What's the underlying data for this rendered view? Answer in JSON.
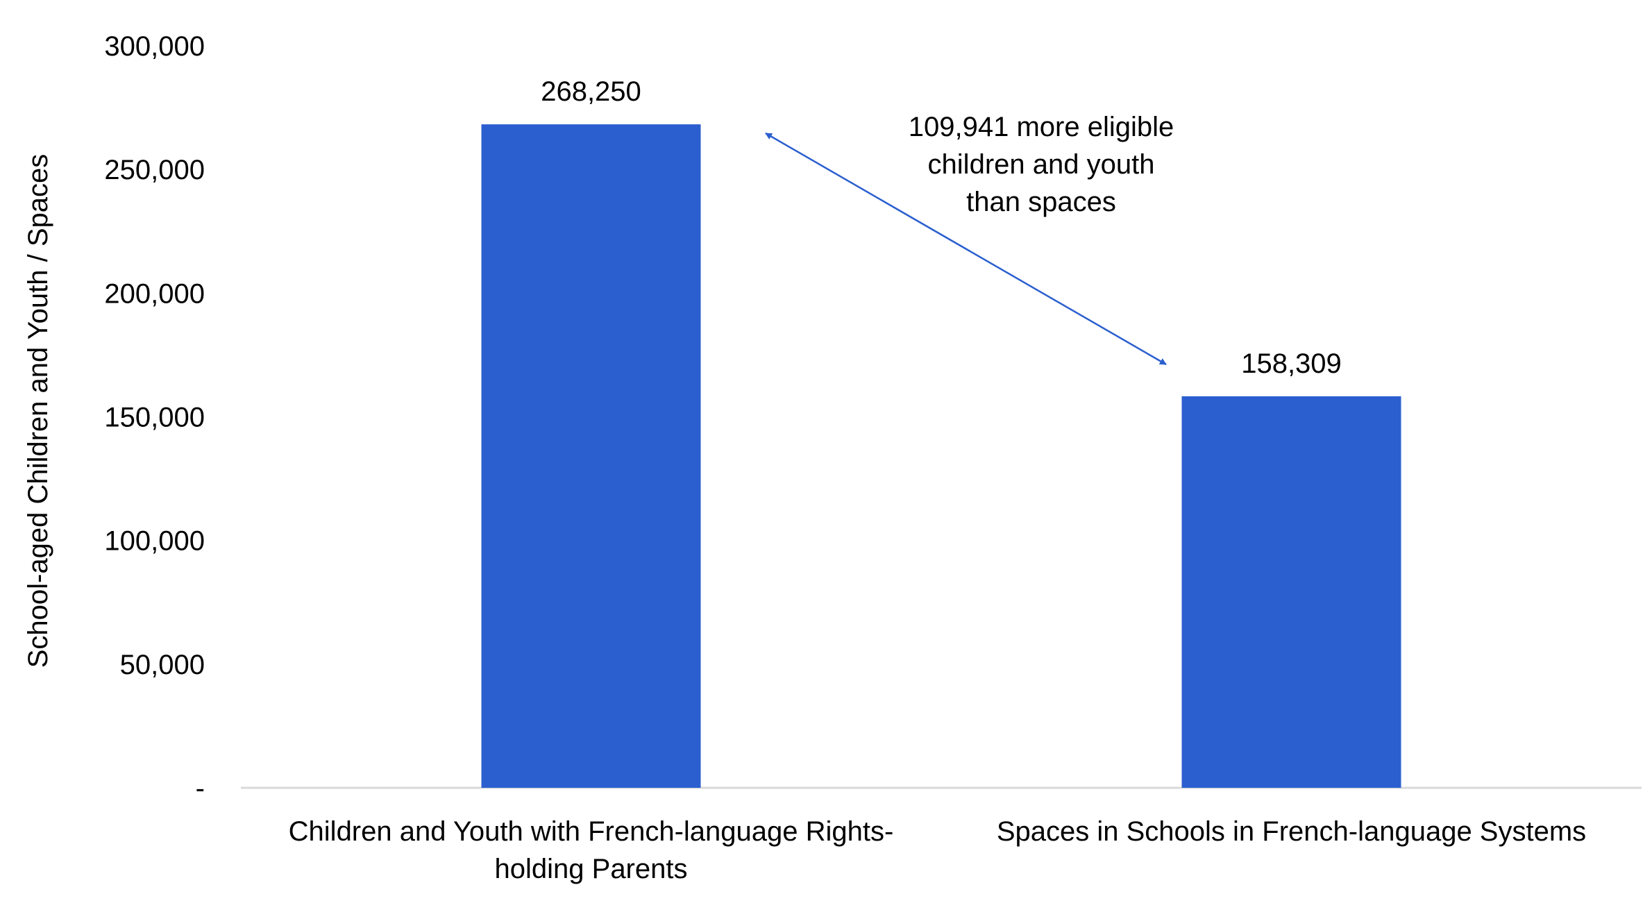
{
  "chart_data": {
    "type": "bar",
    "categories": [
      [
        "Children and Youth with French-language Rights-",
        "holding Parents"
      ],
      [
        "Spaces in Schools in French-language Systems"
      ]
    ],
    "values": [
      268250,
      158309
    ],
    "data_labels": [
      "268,250",
      "158,309"
    ],
    "ylabel": "School-aged Children and Youth / Spaces",
    "xlabel": "",
    "title": "",
    "ylim": [
      0,
      300000
    ],
    "yticks": [
      0,
      50000,
      100000,
      150000,
      200000,
      250000,
      300000
    ],
    "ytick_labels": [
      "-",
      "50,000",
      "100,000",
      "150,000",
      "200,000",
      "250,000",
      "300,000"
    ],
    "grid": false,
    "annotation": {
      "lines": [
        "109,941 more eligible",
        "children and youth",
        "than spaces"
      ],
      "arrow": "double-headed, between bar tops"
    },
    "colors": {
      "bar": "#2B5FCF",
      "axis": "#D9D9D9",
      "arrow": "#2B5FCF"
    }
  }
}
